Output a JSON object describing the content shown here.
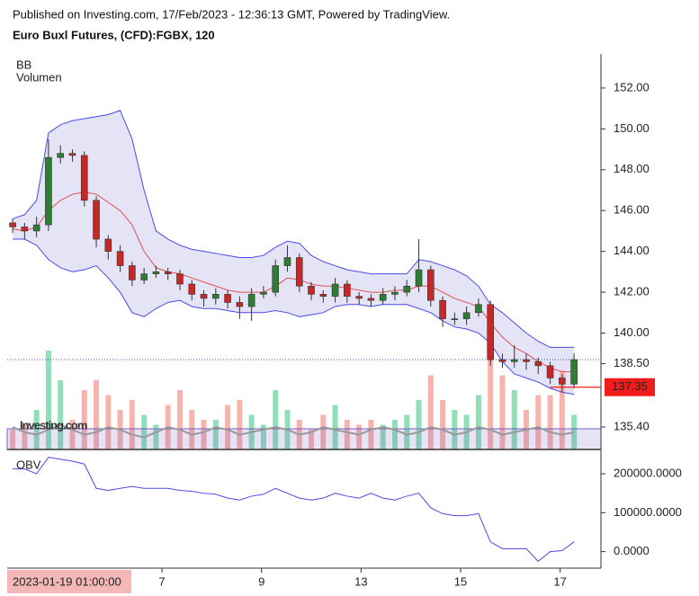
{
  "chart_data": [
    {
      "type": "candlestick",
      "published": "Published on Investing.com, 17/Feb/2023 - 12:36:13 GMT, Powered by TradingView.",
      "title": "Euro Buxl Futures, (CFD):FGBX, 120",
      "indicator_labels": [
        "BB",
        "Volumen"
      ],
      "watermark": "Investing.com",
      "crosshair_label": "2023-01-19 01:00:00",
      "x": [
        -3,
        -2.76,
        -2.52,
        -2.28,
        -2.04,
        -1.8,
        -1.56,
        -1.32,
        -1.08,
        -0.84,
        -0.6,
        -0.36,
        -0.12,
        0.12,
        0.36,
        0.6,
        0.84,
        1.08,
        1.32,
        1.56,
        1.8,
        2.04,
        2.28,
        2.52,
        2.76,
        3,
        3.24,
        3.48,
        3.72,
        3.96,
        4.2,
        4.44,
        4.68,
        4.92,
        5.16,
        5.4,
        5.64,
        5.88,
        6.12,
        6.36,
        6.6,
        6.84,
        7.08,
        7.32,
        7.56,
        7.8,
        8.04,
        8.28
      ],
      "open": [
        145.4,
        145.2,
        145.0,
        145.3,
        148.6,
        148.8,
        148.7,
        146.5,
        144.6,
        144.0,
        143.3,
        142.6,
        142.9,
        143.0,
        142.9,
        142.4,
        141.9,
        141.7,
        141.9,
        141.5,
        141.3,
        141.9,
        142.0,
        143.3,
        143.7,
        142.3,
        141.9,
        141.8,
        142.4,
        141.8,
        141.7,
        141.6,
        141.9,
        142.0,
        142.3,
        143.1,
        141.6,
        140.7,
        140.7,
        141.0,
        141.4,
        138.7,
        138.6,
        138.7,
        138.6,
        138.4,
        137.8,
        137.5
      ],
      "high": [
        145.6,
        145.4,
        145.7,
        149.5,
        149.2,
        149.0,
        148.9,
        146.7,
        144.8,
        144.3,
        143.5,
        143.2,
        143.3,
        143.2,
        143.1,
        142.6,
        142.1,
        142.2,
        142.1,
        141.8,
        142.2,
        142.3,
        143.6,
        144.3,
        143.9,
        142.5,
        142.1,
        142.7,
        142.6,
        142.0,
        141.9,
        142.2,
        142.3,
        142.6,
        144.6,
        143.3,
        141.8,
        141.0,
        141.3,
        141.7,
        141.6,
        139.0,
        139.4,
        139.0,
        138.8,
        138.6,
        138.0,
        139.0
      ],
      "low": [
        144.9,
        144.6,
        144.7,
        145.0,
        148.3,
        148.4,
        146.2,
        144.2,
        143.6,
        143.0,
        142.3,
        142.4,
        142.7,
        142.6,
        142.1,
        141.6,
        141.3,
        141.4,
        141.2,
        140.7,
        140.6,
        141.7,
        141.8,
        143.0,
        142.0,
        141.6,
        141.5,
        141.5,
        141.5,
        141.4,
        141.3,
        141.4,
        141.6,
        141.8,
        142.0,
        141.3,
        140.3,
        140.4,
        140.4,
        140.8,
        138.4,
        138.3,
        138.3,
        138.2,
        138.0,
        137.5,
        137.1,
        137.3
      ],
      "close": [
        145.2,
        145.0,
        145.3,
        148.6,
        148.8,
        148.7,
        146.5,
        144.6,
        144.0,
        143.3,
        142.6,
        142.9,
        143.0,
        142.9,
        142.4,
        141.9,
        141.7,
        141.9,
        141.5,
        141.3,
        141.9,
        142.0,
        143.3,
        143.7,
        142.3,
        141.9,
        141.8,
        142.4,
        141.8,
        141.7,
        141.6,
        141.9,
        142.0,
        142.3,
        143.1,
        141.6,
        140.7,
        140.7,
        141.0,
        141.4,
        138.7,
        138.6,
        138.7,
        138.6,
        138.4,
        137.8,
        137.5,
        138.7
      ],
      "bb_upper": [
        145.6,
        145.8,
        146.5,
        149.8,
        150.2,
        150.4,
        150.5,
        150.6,
        150.7,
        150.9,
        149.5,
        147.0,
        145.0,
        144.6,
        144.3,
        144.1,
        144.0,
        143.9,
        143.8,
        143.7,
        143.7,
        143.8,
        144.2,
        144.5,
        144.4,
        143.8,
        143.5,
        143.3,
        143.1,
        143.0,
        142.9,
        142.9,
        142.9,
        142.9,
        143.6,
        143.5,
        143.3,
        143.1,
        142.8,
        142.3,
        141.4,
        141.0,
        140.5,
        140.0,
        139.6,
        139.3,
        139.3,
        139.3
      ],
      "bb_middle": [
        145.1,
        145.0,
        145.2,
        146.0,
        146.5,
        146.8,
        146.9,
        146.8,
        146.4,
        146.0,
        145.3,
        144.0,
        143.2,
        143.0,
        142.9,
        142.7,
        142.5,
        142.3,
        142.1,
        142.0,
        142.0,
        142.0,
        142.3,
        142.7,
        142.6,
        142.4,
        142.3,
        142.3,
        142.2,
        142.1,
        142.0,
        142.0,
        142.1,
        142.1,
        142.3,
        142.3,
        142.0,
        141.7,
        141.5,
        141.3,
        140.5,
        139.8,
        139.3,
        139.0,
        138.6,
        138.3,
        138.1,
        138.1
      ],
      "bb_lower": [
        144.6,
        144.6,
        144.3,
        143.6,
        143.2,
        143.0,
        143.1,
        143.3,
        142.7,
        142.0,
        141.0,
        140.8,
        141.2,
        141.5,
        141.6,
        141.3,
        141.2,
        141.2,
        141.1,
        141.0,
        141.0,
        141.0,
        141.1,
        141.0,
        140.8,
        140.9,
        141.0,
        141.3,
        141.4,
        141.4,
        141.3,
        141.4,
        141.4,
        141.4,
        141.2,
        141.0,
        140.6,
        140.3,
        140.2,
        140.0,
        139.5,
        138.6,
        138.0,
        137.8,
        137.6,
        137.3,
        137.1,
        137.0
      ],
      "volume": [
        20,
        25,
        40,
        100,
        70,
        30,
        60,
        70,
        55,
        40,
        50,
        35,
        25,
        45,
        60,
        40,
        30,
        30,
        45,
        50,
        35,
        25,
        60,
        40,
        30,
        20,
        35,
        45,
        30,
        25,
        30,
        25,
        30,
        35,
        50,
        75,
        50,
        40,
        35,
        55,
        95,
        75,
        60,
        40,
        55,
        55,
        80,
        35
      ],
      "oscillator": [
        0.6,
        0.4,
        0.3,
        0.5,
        0.7,
        0.5,
        0.3,
        0.4,
        0.6,
        0.5,
        0.3,
        0.2,
        0.4,
        0.6,
        0.5,
        0.3,
        0.4,
        0.6,
        0.5,
        0.3,
        0.4,
        0.5,
        0.6,
        0.5,
        0.3,
        0.4,
        0.6,
        0.5,
        0.4,
        0.3,
        0.5,
        0.6,
        0.5,
        0.3,
        0.4,
        0.6,
        0.5,
        0.3,
        0.4,
        0.6,
        0.5,
        0.3,
        0.4,
        0.5,
        0.6,
        0.4,
        0.3,
        0.4
      ],
      "up_color": "#2e7d32",
      "down_color": "#c62828",
      "volume_up_color": "#8fe0b8",
      "volume_down_color": "#f7b3ad",
      "bb_color": "#4a4ae8",
      "bb_middle_color": "#e05050",
      "bb_fill": "rgba(120,120,210,0.2)",
      "last_price": 137.35,
      "last_price_color": "#f21c1c",
      "dotted_level": 138.7,
      "xlim": [
        -3.11,
        8.82
      ],
      "xticks": [
        {
          "value": 0,
          "label": "7"
        },
        {
          "value": 2,
          "label": "9"
        },
        {
          "value": 4,
          "label": "13"
        },
        {
          "value": 6,
          "label": "15"
        },
        {
          "value": 8,
          "label": "17"
        }
      ],
      "ylim": [
        134.3,
        153.67
      ],
      "yticks": [
        {
          "value": 152,
          "label": "152.00"
        },
        {
          "value": 150,
          "label": "150.00"
        },
        {
          "value": 148,
          "label": "148.00"
        },
        {
          "value": 146,
          "label": "146.00"
        },
        {
          "value": 144,
          "label": "144.00"
        },
        {
          "value": 142,
          "label": "142.00"
        },
        {
          "value": 140,
          "label": "140.00"
        },
        {
          "value": 138.5,
          "label": "138.50"
        },
        {
          "value": 135.4,
          "label": "135.40"
        }
      ]
    },
    {
      "type": "line",
      "title": "OBV",
      "color": "#4a4ae8",
      "x": [
        -3,
        -2.76,
        -2.52,
        -2.28,
        -2.04,
        -1.8,
        -1.56,
        -1.32,
        -1.08,
        -0.84,
        -0.6,
        -0.36,
        -0.12,
        0.12,
        0.36,
        0.6,
        0.84,
        1.08,
        1.32,
        1.56,
        1.8,
        2.04,
        2.28,
        2.52,
        2.76,
        3,
        3.24,
        3.48,
        3.72,
        3.96,
        4.2,
        4.44,
        4.68,
        4.92,
        5.16,
        5.4,
        5.64,
        5.88,
        6.12,
        6.36,
        6.6,
        6.84,
        7.08,
        7.32,
        7.56,
        7.8,
        8.04,
        8.28
      ],
      "values": [
        212500,
        212500,
        200000,
        242500,
        237500,
        232500,
        225000,
        162500,
        157500,
        162500,
        167500,
        162500,
        162500,
        162500,
        157500,
        155000,
        150000,
        147500,
        137500,
        132500,
        142500,
        147500,
        162500,
        150000,
        137500,
        132500,
        137500,
        150000,
        142500,
        137500,
        150000,
        137500,
        132500,
        142500,
        150000,
        112500,
        97500,
        92500,
        92500,
        97500,
        25000,
        7500,
        7500,
        7500,
        -25000,
        0,
        2500,
        25000
      ],
      "xlim": [
        -3.11,
        8.82
      ],
      "ylim": [
        -42500,
        262500
      ],
      "yticks": [
        {
          "value": 200000,
          "label": "200000.0000"
        },
        {
          "value": 100000,
          "label": "100000.0000"
        },
        {
          "value": 0,
          "label": "0.0000"
        }
      ]
    }
  ]
}
